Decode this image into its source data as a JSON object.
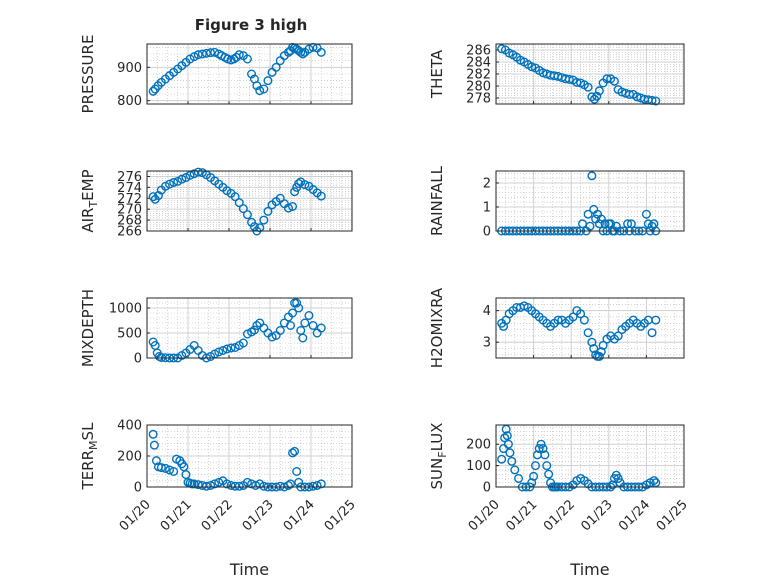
{
  "figure_title": "Figure 3 high",
  "chart_data": [
    {
      "type": "scatter",
      "id": "pressure",
      "ylabel": "PRESSURE",
      "title": "Figure 3 high",
      "xlim": [
        0,
        5
      ],
      "ylim": [
        790,
        970
      ],
      "yticks": [
        800,
        900
      ],
      "yticklabels": [
        "800",
        "900"
      ],
      "x": [
        0.15,
        0.2,
        0.27,
        0.35,
        0.45,
        0.55,
        0.65,
        0.75,
        0.85,
        0.95,
        1.05,
        1.15,
        1.25,
        1.35,
        1.45,
        1.55,
        1.65,
        1.75,
        1.82,
        1.9,
        1.97,
        2.05,
        2.12,
        2.18,
        2.25,
        2.35,
        2.45,
        2.55,
        2.62,
        2.68,
        2.75,
        2.85,
        2.95,
        3.05,
        3.15,
        3.25,
        3.35,
        3.45,
        3.5,
        3.55,
        3.6,
        3.65,
        3.7,
        3.75,
        3.8,
        3.85,
        3.95,
        4.05,
        4.15,
        4.25
      ],
      "y": [
        828,
        835,
        845,
        855,
        865,
        875,
        885,
        895,
        905,
        915,
        925,
        932,
        938,
        940,
        942,
        944,
        945,
        940,
        935,
        930,
        925,
        922,
        925,
        930,
        938,
        935,
        925,
        880,
        865,
        845,
        830,
        835,
        860,
        885,
        900,
        920,
        935,
        945,
        950,
        960,
        958,
        955,
        950,
        945,
        940,
        945,
        955,
        960,
        958,
        945
      ]
    },
    {
      "type": "scatter",
      "id": "theta",
      "ylabel": "THETA",
      "title": "",
      "xlim": [
        0,
        5
      ],
      "ylim": [
        277,
        287
      ],
      "yticks": [
        278,
        280,
        282,
        284,
        286
      ],
      "yticklabels": [
        "278",
        "280",
        "282",
        "284",
        "286"
      ],
      "x": [
        0.15,
        0.25,
        0.35,
        0.45,
        0.55,
        0.65,
        0.75,
        0.85,
        0.95,
        1.05,
        1.15,
        1.25,
        1.35,
        1.45,
        1.55,
        1.65,
        1.75,
        1.85,
        1.95,
        2.05,
        2.15,
        2.25,
        2.35,
        2.45,
        2.55,
        2.62,
        2.68,
        2.75,
        2.85,
        2.95,
        3.05,
        3.15,
        3.25,
        3.35,
        3.45,
        3.55,
        3.65,
        3.75,
        3.85,
        3.95,
        4.05,
        4.15,
        4.25
      ],
      "y": [
        286.2,
        286,
        285.5,
        285.2,
        284.8,
        284.3,
        284,
        283.6,
        283.2,
        283,
        282.6,
        282.2,
        282,
        281.8,
        281.7,
        281.6,
        281.4,
        281.2,
        281.1,
        281,
        280.6,
        280.5,
        280.2,
        279.8,
        278.2,
        277.8,
        278.3,
        279.2,
        280.5,
        281.2,
        281.2,
        280.8,
        279.4,
        279,
        278.8,
        278.6,
        278.6,
        278.2,
        278,
        277.8,
        277.7,
        277.6,
        277.5
      ]
    },
    {
      "type": "scatter",
      "id": "airtemp",
      "ylabel": "AIR_TEMP",
      "title": "",
      "xlim": [
        0,
        5
      ],
      "ylim": [
        266,
        277
      ],
      "yticks": [
        266,
        268,
        270,
        272,
        274,
        276
      ],
      "yticklabels": [
        "266",
        "268",
        "270",
        "272",
        "274",
        "276"
      ],
      "x": [
        0.15,
        0.2,
        0.28,
        0.35,
        0.45,
        0.55,
        0.65,
        0.75,
        0.85,
        0.95,
        1.05,
        1.15,
        1.25,
        1.35,
        1.45,
        1.55,
        1.65,
        1.75,
        1.85,
        1.95,
        2.05,
        2.15,
        2.25,
        2.35,
        2.45,
        2.55,
        2.62,
        2.68,
        2.75,
        2.85,
        2.95,
        3.05,
        3.15,
        3.25,
        3.35,
        3.45,
        3.55,
        3.6,
        3.65,
        3.7,
        3.75,
        3.85,
        3.95,
        4.05,
        4.15,
        4.25
      ],
      "y": [
        272.3,
        271.8,
        272.5,
        273.5,
        274.2,
        274.6,
        274.9,
        275.1,
        275.5,
        275.8,
        276.2,
        276.5,
        276.8,
        276.7,
        276.3,
        275.8,
        275.2,
        274.6,
        274,
        273.4,
        272.9,
        272.3,
        271.2,
        270.1,
        269,
        267.6,
        266.8,
        266,
        266.6,
        268,
        269.6,
        270.8,
        271.4,
        272,
        271,
        270.2,
        270.5,
        273.2,
        274,
        274.7,
        275,
        274.5,
        274.2,
        273.6,
        273,
        272.4
      ]
    },
    {
      "type": "scatter",
      "id": "rainfall",
      "ylabel": "RAINFALL",
      "title": "",
      "xlim": [
        0,
        5
      ],
      "ylim": [
        0,
        2.5
      ],
      "yticks": [
        0,
        1,
        2
      ],
      "yticklabels": [
        "0",
        "1",
        "2"
      ],
      "x": [
        0.15,
        0.25,
        0.35,
        0.45,
        0.55,
        0.65,
        0.75,
        0.85,
        0.95,
        1.05,
        1.15,
        1.25,
        1.35,
        1.45,
        1.55,
        1.65,
        1.75,
        1.85,
        1.95,
        2.05,
        2.15,
        2.25,
        2.3,
        2.4,
        2.45,
        2.5,
        2.55,
        2.6,
        2.65,
        2.7,
        2.75,
        2.8,
        2.85,
        2.9,
        2.95,
        3.0,
        3.05,
        3.1,
        3.15,
        3.2,
        3.3,
        3.4,
        3.5,
        3.55,
        3.6,
        3.7,
        3.8,
        3.9,
        4.0,
        4.05,
        4.1,
        4.15,
        4.2,
        4.25
      ],
      "y": [
        0,
        0,
        0,
        0,
        0,
        0,
        0,
        0,
        0,
        0,
        0,
        0,
        0,
        0,
        0,
        0,
        0,
        0,
        0,
        0,
        0,
        0,
        0.3,
        0,
        0.7,
        0.2,
        2.3,
        0.9,
        0.5,
        0.7,
        0.3,
        0.5,
        0,
        0.3,
        0,
        0.3,
        0.3,
        0,
        0,
        0.2,
        0,
        0,
        0.3,
        0,
        0.3,
        0,
        0,
        0,
        0.7,
        0.3,
        0,
        0.2,
        0.3,
        0
      ]
    },
    {
      "type": "scatter",
      "id": "mixdepth",
      "ylabel": "MIXDEPTH",
      "title": "",
      "xlim": [
        0,
        5
      ],
      "ylim": [
        0,
        1200
      ],
      "yticks": [
        0,
        500,
        1000
      ],
      "yticklabels": [
        "0",
        "500",
        "1000"
      ],
      "x": [
        0.15,
        0.2,
        0.25,
        0.3,
        0.35,
        0.45,
        0.55,
        0.65,
        0.75,
        0.85,
        0.95,
        1.05,
        1.15,
        1.25,
        1.35,
        1.45,
        1.55,
        1.65,
        1.75,
        1.85,
        1.95,
        2.05,
        2.15,
        2.25,
        2.35,
        2.45,
        2.55,
        2.62,
        2.68,
        2.75,
        2.85,
        2.95,
        3.05,
        3.15,
        3.25,
        3.35,
        3.45,
        3.5,
        3.55,
        3.6,
        3.65,
        3.7,
        3.75,
        3.8,
        3.85,
        3.95,
        4.05,
        4.15,
        4.25
      ],
      "y": [
        320,
        250,
        100,
        30,
        10,
        5,
        0,
        0,
        0,
        50,
        100,
        170,
        250,
        150,
        50,
        0,
        30,
        80,
        120,
        150,
        180,
        200,
        210,
        250,
        300,
        480,
        520,
        560,
        650,
        700,
        600,
        500,
        420,
        450,
        550,
        700,
        820,
        650,
        900,
        1100,
        1100,
        1000,
        550,
        400,
        700,
        850,
        650,
        500,
        600
      ]
    },
    {
      "type": "scatter",
      "id": "h2omixra",
      "ylabel": "H2OMIXRA",
      "title": "",
      "xlim": [
        0,
        5
      ],
      "ylim": [
        2.5,
        4.4
      ],
      "yticks": [
        3,
        4
      ],
      "yticklabels": [
        "3",
        "4"
      ],
      "x": [
        0.15,
        0.2,
        0.27,
        0.35,
        0.45,
        0.55,
        0.65,
        0.75,
        0.85,
        0.95,
        1.05,
        1.15,
        1.25,
        1.35,
        1.45,
        1.55,
        1.65,
        1.75,
        1.85,
        1.95,
        2.05,
        2.15,
        2.25,
        2.35,
        2.45,
        2.55,
        2.6,
        2.65,
        2.7,
        2.75,
        2.8,
        2.85,
        2.95,
        3.05,
        3.15,
        3.25,
        3.35,
        3.45,
        3.55,
        3.65,
        3.75,
        3.85,
        3.95,
        4.05,
        4.15,
        4.25
      ],
      "y": [
        3.6,
        3.5,
        3.7,
        3.9,
        4,
        4.1,
        4.1,
        4.15,
        4.1,
        4,
        3.9,
        3.8,
        3.7,
        3.6,
        3.5,
        3.6,
        3.7,
        3.7,
        3.6,
        3.7,
        3.8,
        4,
        3.9,
        3.7,
        3.3,
        3,
        2.8,
        2.6,
        2.55,
        2.55,
        2.7,
        2.9,
        3.1,
        3.2,
        3.1,
        3.2,
        3.4,
        3.5,
        3.6,
        3.7,
        3.6,
        3.5,
        3.6,
        3.7,
        3.3,
        3.7
      ]
    },
    {
      "type": "scatter",
      "id": "terrmsl",
      "ylabel": "TERR_MSL",
      "title": "",
      "xlim": [
        0,
        5
      ],
      "ylim": [
        0,
        400
      ],
      "yticks": [
        0,
        200,
        400
      ],
      "yticklabels": [
        "0",
        "200",
        "400"
      ],
      "x": [
        0.15,
        0.18,
        0.23,
        0.28,
        0.35,
        0.45,
        0.55,
        0.65,
        0.72,
        0.8,
        0.85,
        0.9,
        0.95,
        1.0,
        1.05,
        1.1,
        1.15,
        1.25,
        1.35,
        1.45,
        1.55,
        1.65,
        1.75,
        1.85,
        1.95,
        2.05,
        2.15,
        2.25,
        2.35,
        2.45,
        2.55,
        2.65,
        2.75,
        2.85,
        2.95,
        3.05,
        3.15,
        3.25,
        3.35,
        3.45,
        3.5,
        3.55,
        3.6,
        3.65,
        3.7,
        3.75,
        3.85,
        3.95,
        4.05,
        4.15,
        4.25
      ],
      "y": [
        340,
        270,
        170,
        130,
        125,
        120,
        110,
        100,
        180,
        170,
        150,
        130,
        80,
        30,
        25,
        20,
        20,
        15,
        10,
        5,
        10,
        20,
        30,
        40,
        20,
        10,
        5,
        5,
        10,
        30,
        20,
        10,
        20,
        5,
        0,
        0,
        0,
        5,
        0,
        10,
        20,
        220,
        230,
        100,
        30,
        0,
        0,
        0,
        5,
        10,
        20
      ]
    },
    {
      "type": "scatter",
      "id": "sunflux",
      "ylabel": "SUN_FLUX",
      "title": "",
      "xlim": [
        0,
        5
      ],
      "ylim": [
        0,
        290
      ],
      "yticks": [
        0,
        100,
        200
      ],
      "yticklabels": [
        "0",
        "100",
        "200"
      ],
      "x": [
        0.15,
        0.2,
        0.23,
        0.27,
        0.3,
        0.33,
        0.37,
        0.42,
        0.5,
        0.6,
        0.7,
        0.8,
        0.9,
        0.95,
        1.0,
        1.05,
        1.1,
        1.15,
        1.2,
        1.25,
        1.3,
        1.35,
        1.4,
        1.45,
        1.5,
        1.55,
        1.6,
        1.65,
        1.75,
        1.85,
        1.95,
        2.05,
        2.15,
        2.25,
        2.35,
        2.45,
        2.55,
        2.65,
        2.75,
        2.85,
        2.95,
        3.05,
        3.1,
        3.15,
        3.2,
        3.25,
        3.3,
        3.4,
        3.5,
        3.6,
        3.7,
        3.8,
        3.9,
        4.0,
        4.1,
        4.2,
        4.25
      ],
      "y": [
        130,
        180,
        230,
        270,
        240,
        200,
        160,
        120,
        80,
        40,
        0,
        0,
        0,
        20,
        50,
        100,
        150,
        180,
        200,
        180,
        150,
        100,
        60,
        20,
        0,
        0,
        0,
        0,
        0,
        0,
        0,
        10,
        30,
        40,
        30,
        15,
        0,
        0,
        0,
        0,
        0,
        0,
        10,
        40,
        55,
        40,
        20,
        0,
        0,
        0,
        0,
        0,
        0,
        10,
        20,
        30,
        20
      ]
    }
  ],
  "xaxis": {
    "label": "Time",
    "ticks": [
      0,
      1,
      2,
      3,
      4,
      5
    ],
    "ticklabels": [
      "01/20",
      "01/21",
      "01/22",
      "01/23",
      "01/24",
      "01/25"
    ]
  }
}
